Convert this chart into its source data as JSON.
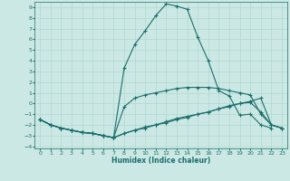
{
  "xlabel": "Humidex (Indice chaleur)",
  "bg_color": "#cce8e4",
  "grid_color": "#b0d8d0",
  "line_color": "#1a6e6e",
  "xlim": [
    -0.5,
    23.5
  ],
  "ylim": [
    -4.2,
    9.5
  ],
  "xticks": [
    0,
    1,
    2,
    3,
    4,
    5,
    6,
    7,
    8,
    9,
    10,
    11,
    12,
    13,
    14,
    15,
    16,
    17,
    18,
    19,
    20,
    21,
    22,
    23
  ],
  "yticks": [
    -4,
    -3,
    -2,
    -1,
    0,
    1,
    2,
    3,
    4,
    5,
    6,
    7,
    8,
    9
  ],
  "series": [
    {
      "x": [
        0,
        1,
        2,
        3,
        4,
        5,
        6,
        7,
        8,
        9,
        10,
        11,
        12,
        13,
        14,
        15,
        16,
        17,
        18,
        19,
        20,
        21,
        22,
        23
      ],
      "y": [
        -1.5,
        -2.0,
        -2.3,
        -2.5,
        -2.7,
        -2.8,
        -3.0,
        -3.2,
        3.3,
        5.5,
        6.8,
        8.2,
        9.3,
        9.1,
        8.8,
        6.2,
        4.0,
        1.2,
        0.7,
        -1.1,
        -1.0,
        -2.0,
        -2.3,
        null
      ]
    },
    {
      "x": [
        0,
        1,
        2,
        3,
        4,
        5,
        6,
        7,
        8,
        9,
        10,
        11,
        12,
        13,
        14,
        15,
        16,
        17,
        18,
        19,
        20,
        21,
        22,
        23
      ],
      "y": [
        -1.5,
        -2.0,
        -2.3,
        -2.5,
        -2.7,
        -2.8,
        -3.0,
        -3.2,
        -2.8,
        -2.5,
        -2.3,
        -2.0,
        -1.8,
        -1.5,
        -1.3,
        -1.0,
        -0.8,
        -0.5,
        -0.3,
        0.0,
        0.2,
        0.5,
        -2.0,
        -2.3
      ]
    },
    {
      "x": [
        0,
        1,
        2,
        3,
        4,
        5,
        6,
        7,
        8,
        9,
        10,
        11,
        12,
        13,
        14,
        15,
        16,
        17,
        18,
        19,
        20,
        21,
        22,
        23
      ],
      "y": [
        -1.5,
        -2.0,
        -2.3,
        -2.5,
        -2.7,
        -2.8,
        -3.0,
        -3.2,
        -2.8,
        -2.5,
        -2.2,
        -2.0,
        -1.7,
        -1.4,
        -1.2,
        -1.0,
        -0.8,
        -0.5,
        -0.2,
        0.0,
        0.1,
        -0.8,
        -2.0,
        -2.3
      ]
    },
    {
      "x": [
        0,
        1,
        2,
        3,
        4,
        5,
        6,
        7,
        8,
        9,
        10,
        11,
        12,
        13,
        14,
        15,
        16,
        17,
        18,
        19,
        20,
        21,
        22,
        23
      ],
      "y": [
        -1.5,
        -2.0,
        -2.3,
        -2.5,
        -2.7,
        -2.8,
        -3.0,
        -3.2,
        -0.3,
        0.5,
        0.8,
        1.0,
        1.2,
        1.4,
        1.5,
        1.5,
        1.5,
        1.4,
        1.2,
        1.0,
        0.8,
        -1.0,
        -2.0,
        -2.3
      ]
    }
  ]
}
